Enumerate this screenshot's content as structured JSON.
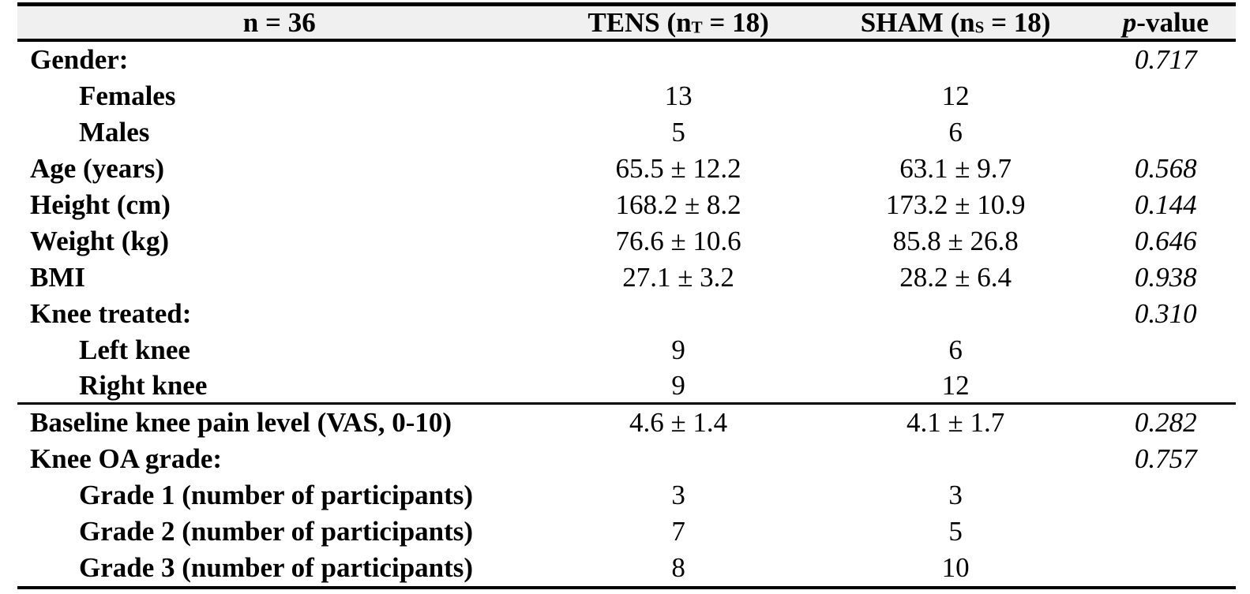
{
  "colors": {
    "header_bg": "#f0f0f0",
    "rule": "#000000",
    "text": "#000000",
    "page_bg": "#ffffff"
  },
  "table": {
    "header": {
      "col1": "n = 36",
      "tens": {
        "prefix": "TENS (n",
        "sub": "T",
        "suffix": " = 18)"
      },
      "sham": {
        "prefix": "SHAM (n",
        "sub": "S",
        "suffix": " = 18)"
      },
      "pvalue": {
        "italic": "p",
        "rest": "-value"
      }
    },
    "rows": [
      {
        "label": "Gender:",
        "indent": false,
        "tens": "",
        "sham": "",
        "p": "0.717"
      },
      {
        "label": "Females",
        "indent": true,
        "tens": "13",
        "sham": "12",
        "p": ""
      },
      {
        "label": "Males",
        "indent": true,
        "tens": "5",
        "sham": "6",
        "p": ""
      },
      {
        "label": "Age (years)",
        "indent": false,
        "tens": "65.5 ± 12.2",
        "sham": "63.1 ± 9.7",
        "p": "0.568"
      },
      {
        "label": "Height (cm)",
        "indent": false,
        "tens": "168.2 ± 8.2",
        "sham": "173.2 ± 10.9",
        "p": "0.144"
      },
      {
        "label": "Weight (kg)",
        "indent": false,
        "tens": "76.6 ± 10.6",
        "sham": "85.8 ± 26.8",
        "p": "0.646"
      },
      {
        "label": "BMI",
        "indent": false,
        "tens": "27.1 ± 3.2",
        "sham": "28.2 ± 6.4",
        "p": "0.938"
      },
      {
        "label": "Knee treated:",
        "indent": false,
        "tens": "",
        "sham": "",
        "p": "0.310"
      },
      {
        "label": "Left knee",
        "indent": true,
        "tens": "9",
        "sham": "6",
        "p": ""
      },
      {
        "label": "Right knee",
        "indent": true,
        "tens": "9",
        "sham": "12",
        "p": ""
      },
      {
        "label": "Baseline knee pain level (VAS, 0-10)",
        "indent": false,
        "tens": "4.6 ± 1.4",
        "sham": "4.1 ± 1.7",
        "p": "0.282"
      },
      {
        "label": "Knee OA grade:",
        "indent": false,
        "tens": "",
        "sham": "",
        "p": "0.757"
      },
      {
        "label": "Grade 1 (number of participants)",
        "indent": true,
        "tens": "3",
        "sham": "3",
        "p": ""
      },
      {
        "label": "Grade 2 (number of participants)",
        "indent": true,
        "tens": "7",
        "sham": "5",
        "p": ""
      },
      {
        "label": "Grade 3 (number of participants)",
        "indent": true,
        "tens": "8",
        "sham": "10",
        "p": ""
      }
    ]
  }
}
